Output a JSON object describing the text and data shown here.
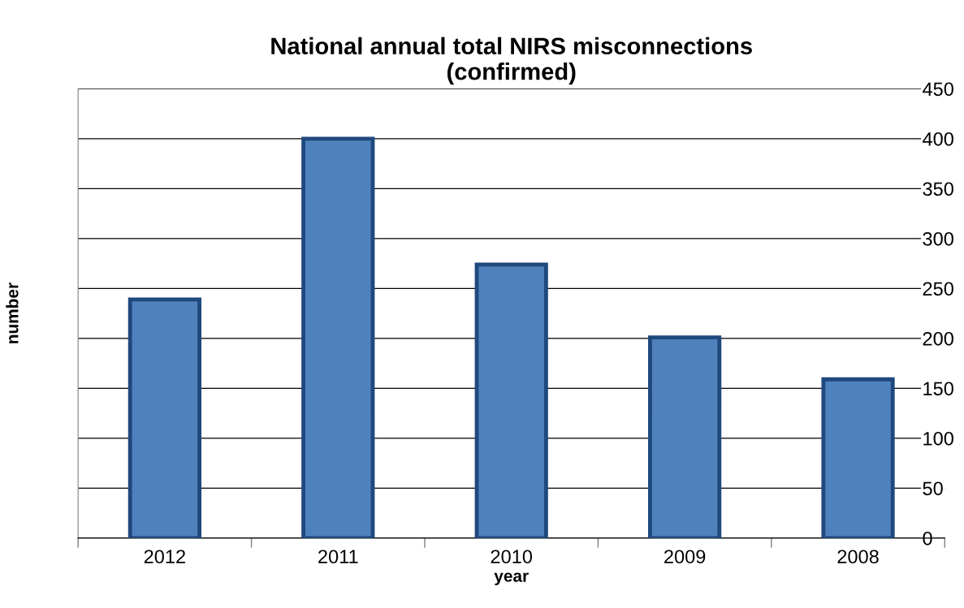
{
  "chart_data": {
    "type": "bar",
    "title": "National annual total NIRS misconnections\n(confirmed)",
    "xlabel": "year",
    "ylabel": "number",
    "categories": [
      "2012",
      "2011",
      "2010",
      "2009",
      "2008"
    ],
    "values": [
      239,
      400,
      274,
      201,
      159
    ],
    "color": "#4f81bd",
    "ylim": [
      0,
      450
    ],
    "yticks": [
      0,
      50,
      100,
      150,
      200,
      250,
      300,
      350,
      400,
      450
    ],
    "grid": "y"
  }
}
